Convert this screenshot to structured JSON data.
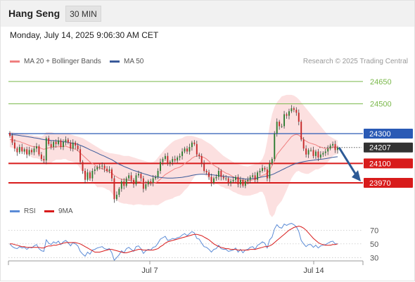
{
  "header": {
    "instrument": "Hang Seng",
    "interval": "30 MIN"
  },
  "timestamp": "Monday, July 14, 2025 9:06:30 AM CET",
  "legend": {
    "ma20": {
      "label": "MA 20 + Bollinger Bands",
      "color": "#f08080"
    },
    "ma50": {
      "label": "MA 50",
      "color": "#3a5a9a"
    }
  },
  "research_text": "Research © 2025 Trading Central",
  "rsi_legend": {
    "rsi": {
      "label": "RSI",
      "color": "#5b8bd6"
    },
    "ma9": {
      "label": "9MA",
      "color": "#d81b1b"
    }
  },
  "chart_data": [
    {
      "type": "candlestick",
      "ylim": [
        23800,
        24720
      ],
      "x_ticks": [
        "Jul 7",
        "Jul 14"
      ],
      "levels": [
        {
          "value": 24650,
          "label": "24650",
          "style": "target",
          "color": "#7ab84a"
        },
        {
          "value": 24500,
          "label": "24500",
          "style": "target",
          "color": "#7ab84a"
        },
        {
          "value": 24300,
          "label": "24300",
          "style": "pivot",
          "color": "#2a5ab5"
        },
        {
          "value": 24207,
          "label": "24207",
          "style": "last",
          "color": "#333333"
        },
        {
          "value": 24100,
          "label": "24100",
          "style": "support",
          "color": "#d81b1b"
        },
        {
          "value": 23970,
          "label": "23970",
          "style": "support",
          "color": "#d81b1b"
        }
      ],
      "close": [
        24285,
        24240,
        24200,
        24175,
        24210,
        24180,
        24195,
        24160,
        24190,
        24175,
        24200,
        24215,
        24160,
        24130,
        24120,
        24270,
        24230,
        24210,
        24245,
        24230,
        24255,
        24210,
        24245,
        24260,
        24240,
        24200,
        24240,
        24220,
        24195,
        24110,
        24050,
        23990,
        24040,
        24000,
        24050,
        24060,
        24075,
        24080,
        24085,
        24065,
        24050,
        24060,
        24000,
        23860,
        23890,
        23930,
        23980,
        23950,
        24000,
        24020,
        23990,
        23960,
        24020,
        24030,
        24000,
        23930,
        23960,
        23980,
        23970,
        24000,
        24010,
        24050,
        24110,
        24130,
        24150,
        24100,
        24110,
        24130,
        24120,
        24140,
        24150,
        24180,
        24200,
        24180,
        24210,
        24240,
        24230,
        24160,
        24150,
        24100,
        24050,
        24040,
        24010,
        23970,
        24000,
        24010,
        24050,
        24010,
        24000,
        24000,
        23970,
        23980,
        23990,
        24010,
        23960,
        23990,
        23950,
        23980,
        23990,
        24010,
        24020,
        23990,
        24040,
        24050,
        24070,
        24060,
        24000,
        24100,
        24130,
        24300,
        24380,
        24350,
        24350,
        24430,
        24420,
        24450,
        24470,
        24460,
        24440,
        24380,
        24260,
        24200,
        24160,
        24190,
        24190,
        24150,
        24180,
        24140,
        24160,
        24170,
        24180,
        24200,
        24220,
        24230,
        24190,
        24207
      ],
      "ma20": [
        24260,
        24258,
        24255,
        24250,
        24247,
        24240,
        24235,
        24228,
        24222,
        24215,
        24212,
        24212,
        24208,
        24200,
        24195,
        24200,
        24205,
        24208,
        24210,
        24212,
        24212,
        24212,
        24215,
        24215,
        24210,
        24205,
        24200,
        24195,
        24185,
        24170,
        24155,
        24140,
        24125,
        24110,
        24100,
        24090,
        24075,
        24070,
        24065,
        24058,
        24050,
        24045,
        24035,
        24020,
        24010,
        24000,
        23995,
        23990,
        23990,
        23988,
        23985,
        23980,
        23980,
        23978,
        23975,
        23970,
        23968,
        23965,
        23964,
        23966,
        23970,
        23980,
        23995,
        24010,
        24025,
        24035,
        24045,
        24055,
        24065,
        24070,
        24075,
        24085,
        24100,
        24110,
        24120,
        24135,
        24145,
        24150,
        24150,
        24145,
        24140,
        24130,
        24115,
        24100,
        24088,
        24078,
        24068,
        24055,
        24045,
        24035,
        24030,
        24020,
        24010,
        24002,
        23995,
        23990,
        23985,
        23983,
        23982,
        23985,
        23990,
        23995,
        24000,
        24010,
        24020,
        24025,
        24035,
        24055,
        24085,
        24120,
        24160,
        24180,
        24200,
        24220,
        24240,
        24260,
        24280,
        24290,
        24295,
        24290,
        24275,
        24262,
        24250,
        24240,
        24235,
        24230,
        24225,
        24215,
        24210,
        24205,
        24200,
        24200,
        24205,
        24210,
        24210,
        24210
      ],
      "bb_upper": [
        24310,
        24310,
        24305,
        24305,
        24300,
        24300,
        24295,
        24295,
        24290,
        24290,
        24285,
        24285,
        24280,
        24280,
        24290,
        24310,
        24310,
        24310,
        24305,
        24300,
        24300,
        24300,
        24300,
        24300,
        24300,
        24295,
        24290,
        24285,
        24280,
        24275,
        24270,
        24260,
        24250,
        24240,
        24230,
        24220,
        24210,
        24200,
        24190,
        24180,
        24175,
        24170,
        24168,
        24165,
        24162,
        24160,
        24155,
        24150,
        24150,
        24150,
        24145,
        24140,
        24135,
        24130,
        24125,
        24120,
        24115,
        24110,
        24108,
        24110,
        24120,
        24140,
        24160,
        24180,
        24200,
        24215,
        24230,
        24245,
        24255,
        24260,
        24265,
        24270,
        24280,
        24285,
        24285,
        24285,
        24280,
        24275,
        24270,
        24265,
        24255,
        24245,
        24235,
        24225,
        24210,
        24195,
        24180,
        24165,
        24150,
        24140,
        24130,
        24120,
        24110,
        24100,
        24095,
        24090,
        24085,
        24082,
        24080,
        24085,
        24090,
        24095,
        24100,
        24110,
        24130,
        24170,
        24250,
        24350,
        24430,
        24480,
        24510,
        24530,
        24550,
        24555,
        24560,
        24560,
        24560,
        24555,
        24545,
        24530,
        24510,
        24490,
        24470,
        24450,
        24430,
        24410,
        24390,
        24370,
        24350,
        24330,
        24310,
        24290,
        24280,
        24270,
        24262,
        24255
      ],
      "bb_lower": [
        24210,
        24205,
        24200,
        24195,
        24190,
        24182,
        24175,
        24165,
        24155,
        24140,
        24135,
        24135,
        24130,
        24120,
        24100,
        24090,
        24100,
        24105,
        24115,
        24125,
        24125,
        24125,
        24130,
        24130,
        24120,
        24115,
        24110,
        24105,
        24090,
        24065,
        24040,
        24020,
        24000,
        23980,
        23970,
        23960,
        23940,
        23940,
        23940,
        23935,
        23925,
        23920,
        23900,
        23875,
        23858,
        23840,
        23835,
        23830,
        23830,
        23826,
        23825,
        23820,
        23825,
        23826,
        23825,
        23820,
        23821,
        23820,
        23820,
        23822,
        23820,
        23820,
        23830,
        23840,
        23850,
        23855,
        23860,
        23865,
        23875,
        23880,
        23885,
        23900,
        23920,
        23935,
        23955,
        23985,
        24010,
        24025,
        24030,
        24025,
        24025,
        24015,
        23995,
        23975,
        23966,
        23961,
        23956,
        23945,
        23940,
        23930,
        23930,
        23920,
        23910,
        23904,
        23895,
        23890,
        23885,
        23884,
        23884,
        23885,
        23890,
        23895,
        23900,
        23910,
        23910,
        23880,
        23820,
        23760,
        23740,
        23760,
        23810,
        23830,
        23850,
        23885,
        23920,
        23960,
        24000,
        24025,
        24045,
        24050,
        24040,
        24034,
        24030,
        24030,
        24040,
        24050,
        24060,
        24060,
        24070,
        24080,
        24090,
        24110,
        24130,
        24150,
        24158,
        24165
      ],
      "ma50": [
        24290,
        24292,
        24292,
        24290,
        24288,
        24285,
        24283,
        24280,
        24278,
        24275,
        24272,
        24270,
        24267,
        24263,
        24260,
        24258,
        24256,
        24254,
        24253,
        24252,
        24250,
        24248,
        24246,
        24244,
        24242,
        24238,
        24235,
        24232,
        24228,
        24222,
        24215,
        24208,
        24200,
        24192,
        24185,
        24178,
        24170,
        24162,
        24155,
        24148,
        24140,
        24132,
        24125,
        24115,
        24105,
        24095,
        24088,
        24080,
        24073,
        24067,
        24060,
        24053,
        24048,
        24043,
        24038,
        24032,
        24027,
        24022,
        24017,
        24013,
        24010,
        24008,
        24006,
        24004,
        24003,
        24002,
        24002,
        24002,
        24003,
        24004,
        24005,
        24007,
        24010,
        24013,
        24016,
        24020,
        24023,
        24025,
        24027,
        24028,
        24028,
        24027,
        24026,
        24024,
        24022,
        24020,
        24018,
        24016,
        24014,
        24012,
        24010,
        24008,
        24006,
        24004,
        24002,
        24000,
        23998,
        23996,
        23995,
        23996,
        23998,
        24000,
        24003,
        24006,
        24010,
        24013,
        24016,
        24020,
        24025,
        24032,
        24040,
        24048,
        24056,
        24064,
        24072,
        24080,
        24088,
        24095,
        24100,
        24105,
        24108,
        24112,
        24115,
        24118,
        24120,
        24122,
        24124,
        24126,
        24128,
        24130,
        24132,
        24135,
        24138,
        24141,
        24143,
        24145
      ]
    },
    {
      "type": "line",
      "ylim": [
        20,
        95
      ],
      "y_ticks": [
        70,
        50,
        30
      ],
      "series": [
        {
          "name": "RSI",
          "values": [
            50,
            46,
            44,
            43,
            46,
            44,
            45,
            42,
            45,
            44,
            47,
            49,
            43,
            40,
            39,
            56,
            51,
            49,
            53,
            51,
            54,
            49,
            53,
            55,
            52,
            47,
            52,
            50,
            47,
            39,
            35,
            32,
            38,
            35,
            41,
            42,
            44,
            45,
            46,
            43,
            42,
            43,
            37,
            26,
            30,
            34,
            40,
            37,
            43,
            45,
            42,
            39,
            46,
            47,
            43,
            36,
            40,
            42,
            41,
            45,
            46,
            51,
            57,
            59,
            61,
            55,
            56,
            58,
            57,
            59,
            60,
            63,
            65,
            62,
            65,
            68,
            66,
            58,
            57,
            51,
            46,
            45,
            42,
            38,
            42,
            43,
            48,
            43,
            42,
            42,
            39,
            40,
            41,
            44,
            38,
            42,
            37,
            41,
            42,
            45,
            46,
            42,
            48,
            50,
            53,
            51,
            44,
            56,
            60,
            72,
            78,
            74,
            73,
            79,
            77,
            79,
            80,
            78,
            75,
            68,
            55,
            50,
            46,
            49,
            49,
            45,
            48,
            44,
            47,
            48,
            49,
            51,
            53,
            54,
            50,
            50
          ]
        },
        {
          "name": "9MA",
          "values": [
            50,
            50,
            49,
            48,
            47,
            46,
            46,
            45,
            45,
            45,
            45,
            45,
            45,
            44,
            44,
            46,
            47,
            47,
            48,
            48,
            49,
            50,
            51,
            52,
            52,
            52,
            52,
            52,
            51,
            50,
            48,
            46,
            44,
            42,
            40,
            38,
            38,
            38,
            39,
            40,
            41,
            42,
            42,
            41,
            40,
            39,
            38,
            37,
            37,
            38,
            39,
            40,
            41,
            42,
            42,
            41,
            41,
            41,
            41,
            41,
            42,
            43,
            46,
            48,
            51,
            53,
            54,
            55,
            56,
            57,
            58,
            59,
            60,
            61,
            62,
            63,
            64,
            64,
            63,
            62,
            60,
            58,
            56,
            53,
            50,
            48,
            46,
            45,
            44,
            43,
            43,
            42,
            42,
            42,
            41,
            41,
            41,
            41,
            41,
            42,
            42,
            42,
            43,
            44,
            45,
            46,
            46,
            47,
            49,
            52,
            55,
            58,
            61,
            64,
            67,
            70,
            72,
            74,
            75,
            76,
            75,
            73,
            70,
            66,
            62,
            58,
            55,
            52,
            50,
            49,
            48,
            48,
            48,
            49,
            49,
            50
          ]
        }
      ]
    }
  ]
}
